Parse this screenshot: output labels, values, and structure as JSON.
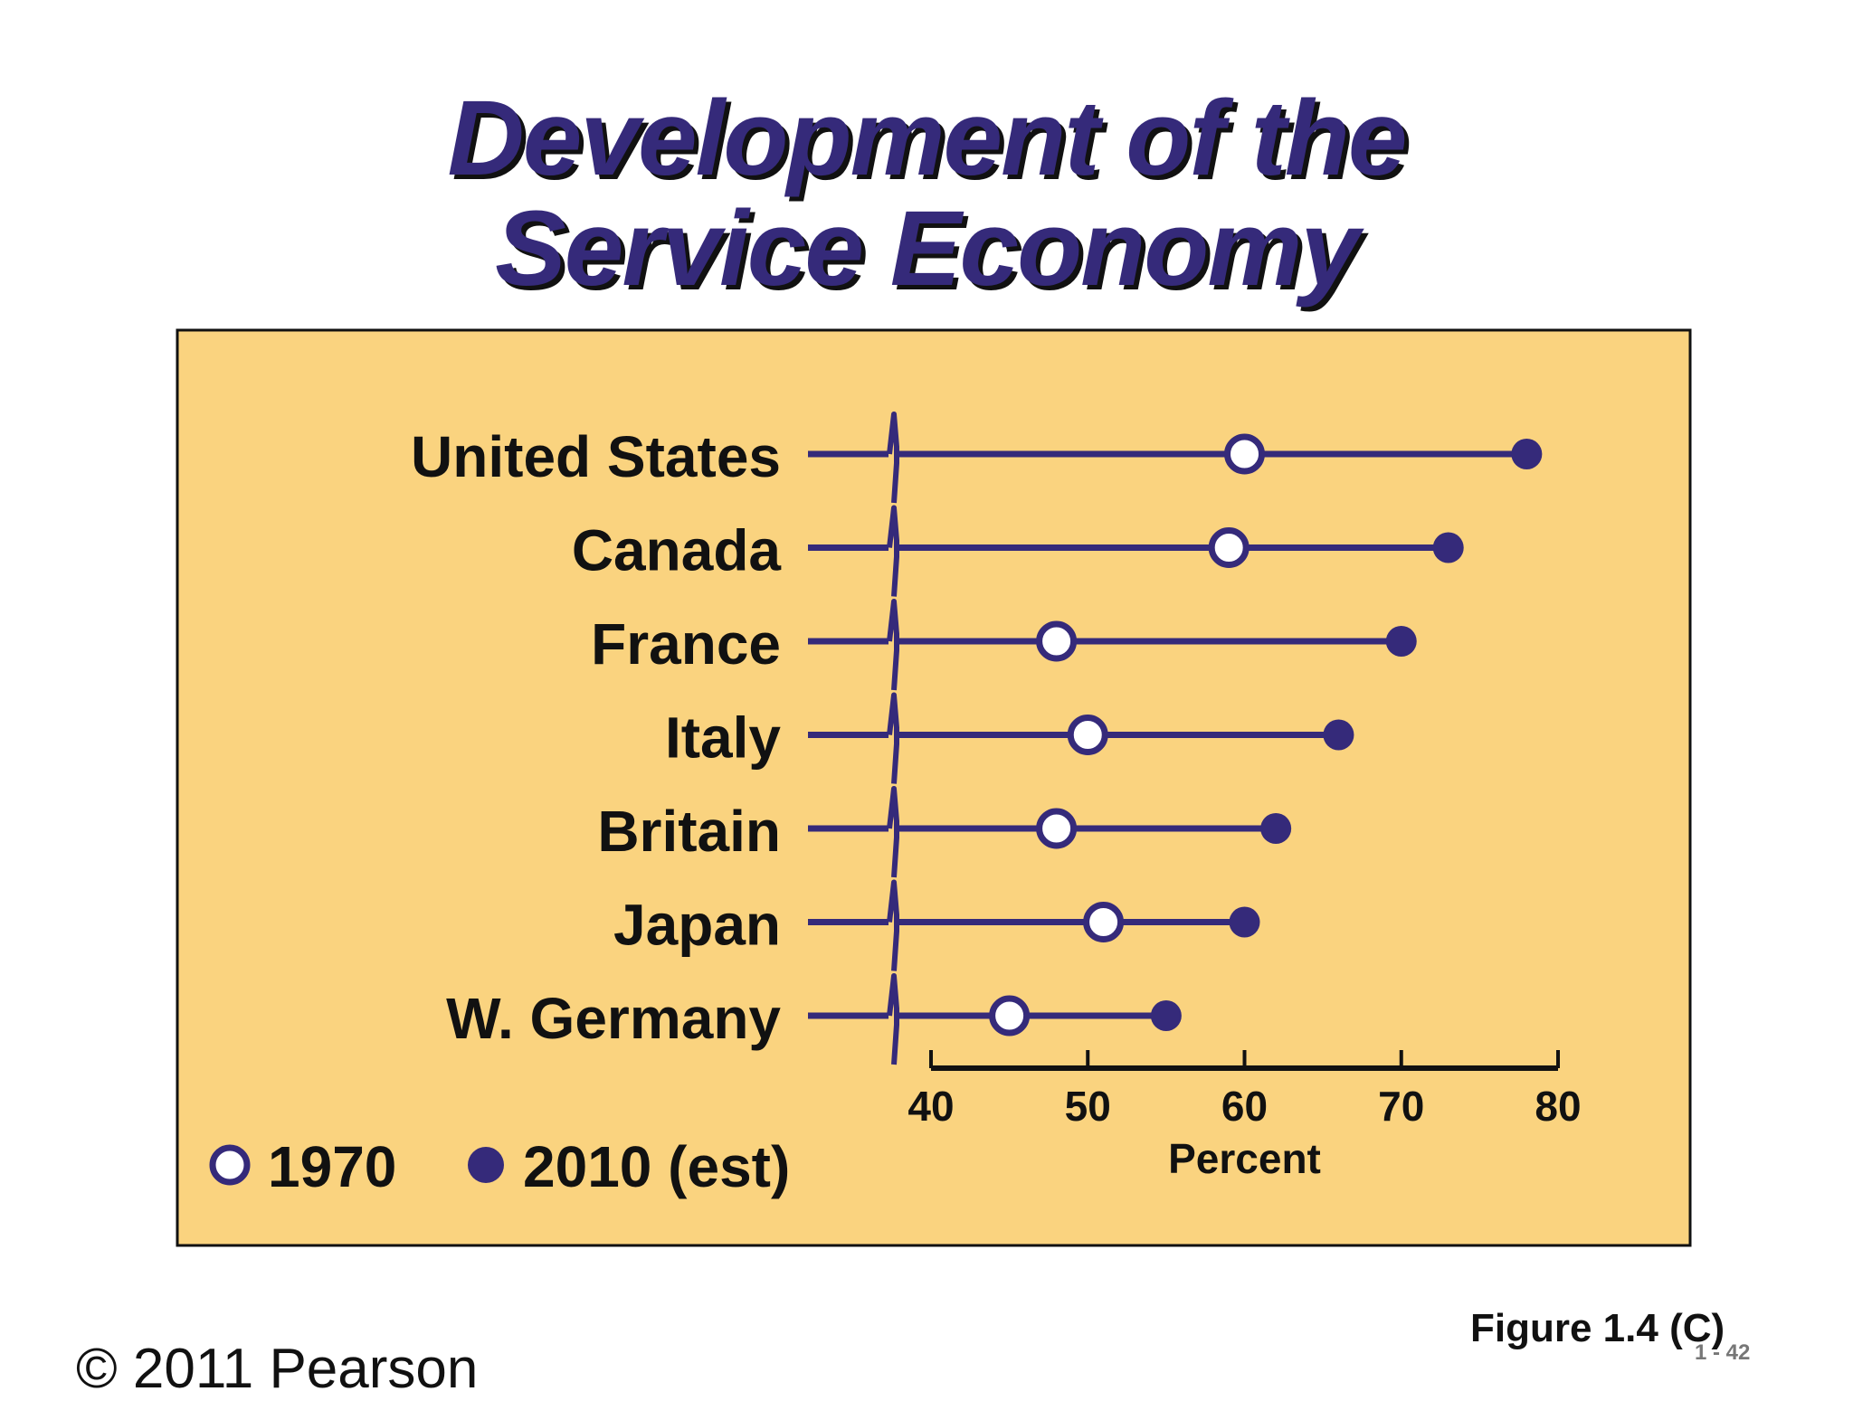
{
  "slide": {
    "title_line1": "Development of the",
    "title_line2": "Service Economy",
    "figure_label": "Figure 1.4 (C)",
    "page_number": "1 - 42",
    "copyright": "© 2011 Pearson"
  },
  "colors": {
    "panel_background": "#fad37f",
    "series_color": "#352a7a",
    "title_color": "#352a7a"
  },
  "chart_data": {
    "type": "dumbbell",
    "categories": [
      "United States",
      "Canada",
      "France",
      "Italy",
      "Britain",
      "Japan",
      "W. Germany"
    ],
    "series": [
      {
        "name": "1970",
        "marker": "hollow-circle",
        "values": [
          60,
          59,
          48,
          50,
          48,
          51,
          45
        ]
      },
      {
        "name": "2010 (est)",
        "marker": "filled-circle",
        "values": [
          78,
          73,
          70,
          66,
          62,
          60,
          55
        ]
      }
    ],
    "xlabel": "Percent",
    "xlim": [
      40,
      80
    ],
    "xticks": [
      40,
      50,
      60,
      70,
      80
    ],
    "axis_break": true,
    "grid": false,
    "legend_placement": "bottom-left"
  }
}
